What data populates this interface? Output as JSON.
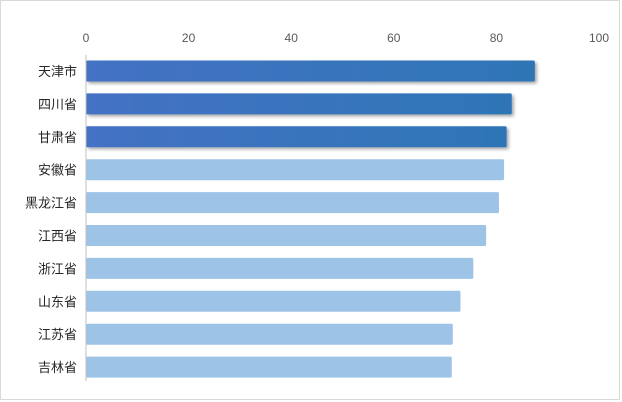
{
  "chart_data": {
    "type": "bar",
    "orientation": "horizontal",
    "title": "",
    "xlabel": "",
    "ylabel": "",
    "xlim": [
      0,
      100
    ],
    "x_ticks": [
      "0",
      "20",
      "40",
      "60",
      "80",
      "100"
    ],
    "x_axis_position": "top",
    "grid": false,
    "legend": "none",
    "categories": [
      "天津市",
      "四川省",
      "甘肃省",
      "安徽省",
      "黑龙江省",
      "江西省",
      "浙江省",
      "山东省",
      "江苏省",
      "吉林省"
    ],
    "values": [
      87.5,
      83,
      82,
      81.5,
      80.5,
      78,
      75.5,
      73,
      71.5,
      71.3
    ],
    "highlight_count": 3,
    "colors": {
      "highlight_start": "#4472C4",
      "highlight_end": "#2E75B6",
      "normal": "#9DC3E6",
      "axis": "#BFBFBF",
      "tick_text": "#595959",
      "category_text": "#262626"
    }
  }
}
